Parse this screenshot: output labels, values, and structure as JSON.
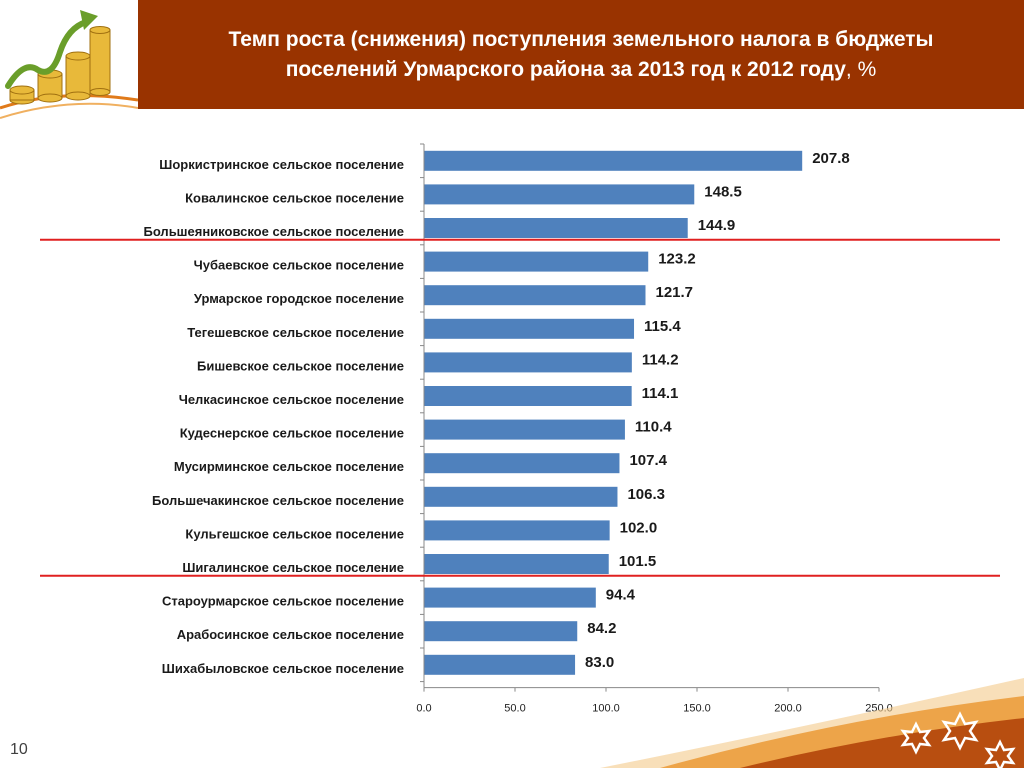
{
  "header": {
    "title_line1": "Темп роста (снижения) поступления земельного налога в бюджеты",
    "title_line2_main": "поселений Урмарского района за   2013 год к  2012 году",
    "title_line2_suffix": ", %"
  },
  "page_number": "10",
  "colors": {
    "header_bg": "#993300",
    "bar": "#4f81bd",
    "divider": "#e02020",
    "coin": "#e8b93a",
    "arrow": "#6a9e2a",
    "wave": "#e07a1a"
  },
  "icons": [
    "coins-growth-icon",
    "star-ornament-icon"
  ],
  "chart_data": {
    "type": "bar",
    "orientation": "horizontal",
    "categories": [
      "Шоркистринское  сельское поселение",
      "Ковалинское  сельское поселение",
      "Большеяниковское  сельское поселение",
      "Чубаевское  сельское поселение",
      "Урмарское  городское поселение",
      "Тегешевское  сельское поселение",
      "Бишевское  сельское поселение",
      "Челкасинское  сельское поселение",
      "Кудеснерское  сельское поселение",
      "Мусирминское  сельское поселение",
      "Большечакинское  сельское поселение",
      "Кульгешское  сельское поселение",
      "Шигалинское  сельское поселение",
      "Староурмарское  сельское поселение",
      "Арабосинское сельское поселение",
      "Шихабыловское  сельское поселение"
    ],
    "values": [
      207.8,
      148.5,
      144.9,
      123.2,
      121.7,
      115.4,
      114.2,
      114.1,
      110.4,
      107.4,
      106.3,
      102.0,
      101.5,
      94.4,
      84.2,
      83.0
    ],
    "value_labels": [
      "207.8",
      "148.5",
      "144.9",
      "123.2",
      "121.7",
      "115.4",
      "114.2",
      "114.1",
      "110.4",
      "107.4",
      "106.3",
      "102.0",
      "101.5",
      "94.4",
      "84.2",
      "83.0"
    ],
    "xlim": [
      0,
      250
    ],
    "xticks": [
      0,
      50,
      100,
      150,
      200,
      250
    ],
    "xtick_labels": [
      "0.0",
      "50.0",
      "100.0",
      "150.0",
      "200.0",
      "250.0"
    ],
    "separator_after_index": [
      2,
      12
    ],
    "xlabel": "",
    "ylabel": "",
    "grid": false,
    "legend": "none"
  }
}
